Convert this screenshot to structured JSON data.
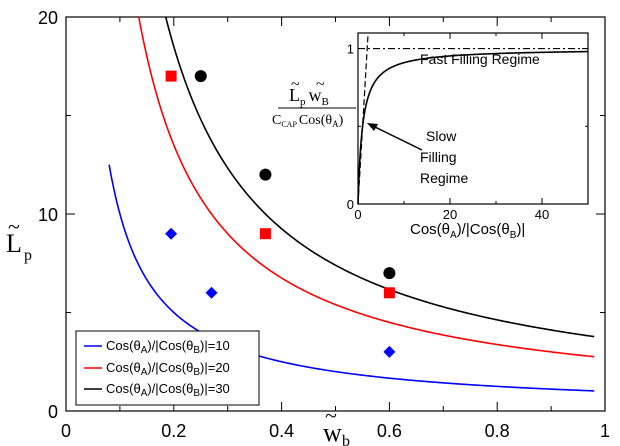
{
  "chart_data": [
    {
      "type": "line",
      "xlabel": "w̃_b",
      "ylabel": "L̃_p",
      "xlim": [
        0,
        1
      ],
      "ylim": [
        0,
        20
      ],
      "x_ticks": [
        0,
        0.2,
        0.4,
        0.6,
        0.8,
        1
      ],
      "x_tick_labels": [
        "0",
        "0.2",
        "0.4",
        "0.6",
        "0.8",
        "1"
      ],
      "y_ticks": [
        0,
        10,
        20
      ],
      "y_tick_labels": [
        "0",
        "10",
        "20"
      ],
      "grid": false,
      "legend_position": "bottom-left",
      "series": [
        {
          "name": "Cos(θA)/|Cos(θB)|=10",
          "color": "#0000ff",
          "line_coefficient": 1.0,
          "line_x_range": [
            0.08,
            0.98
          ],
          "markers": {
            "shape": "diamond",
            "x": [
              0.195,
              0.27,
              0.6
            ],
            "y": [
              9,
              6,
              3
            ]
          }
        },
        {
          "name": "Cos(θA)/|Cos(θB)|=20",
          "color": "#ff0000",
          "line_coefficient": 2.7,
          "line_x_range": [
            0.135,
            0.98
          ],
          "markers": {
            "shape": "square",
            "x": [
              0.195,
              0.37,
              0.6
            ],
            "y": [
              17,
              9,
              6
            ]
          }
        },
        {
          "name": "Cos(θA)/|Cos(θB)|=30",
          "color": "#000000",
          "line_coefficient": 3.7,
          "line_x_range": [
            0.185,
            0.98
          ],
          "markers": {
            "shape": "circle",
            "x": [
              0.25,
              0.37,
              0.6
            ],
            "y": [
              17,
              12,
              7
            ]
          }
        }
      ]
    },
    {
      "type": "line",
      "xlabel": "Cos(θA)/|Cos(θB)|",
      "ylabel": "L̃p w̃B / (C_CAP Cos(θA))",
      "xlim": [
        0,
        50
      ],
      "ylim": [
        0,
        1.1
      ],
      "x_ticks": [
        0,
        20,
        40
      ],
      "x_tick_labels": [
        "0",
        "20",
        "40"
      ],
      "y_ticks": [
        0,
        1
      ],
      "y_tick_labels": [
        "0",
        "1"
      ],
      "curve": {
        "form": "x/(1+x)",
        "color": "#000000",
        "style": "solid"
      },
      "limit_line": {
        "y": 1,
        "style": "dash-dot"
      },
      "steep_line": {
        "style": "dashed",
        "x": [
          0,
          2.2
        ],
        "y": [
          0,
          1.1
        ]
      },
      "annotations": [
        "Fast Filling Regime",
        "Slow",
        "Filling",
        "Regime"
      ]
    }
  ],
  "main_labels": {
    "x_label_symbol": "w",
    "x_label_sub": "b",
    "y_label_symbol": "L",
    "y_label_sub": "p",
    "tilde": "~"
  },
  "legend": [
    {
      "pre": "Cos(θ",
      "sub1": "A",
      "mid": ")/|Cos(θ",
      "sub2": "B",
      "post": ")|=10",
      "color": "#0000ff"
    },
    {
      "pre": "Cos(θ",
      "sub1": "A",
      "mid": ")/|Cos(θ",
      "sub2": "B",
      "post": ")|=20",
      "color": "#ff0000"
    },
    {
      "pre": "Cos(θ",
      "sub1": "A",
      "mid": ")/|Cos(θ",
      "sub2": "B",
      "post": ")|=30",
      "color": "#000000"
    }
  ],
  "inset": {
    "fast_label": "Fast Filling Regime",
    "slow_label_lines": [
      "Slow",
      "Filling",
      "Regime"
    ],
    "ylabel_num_L": "L",
    "ylabel_num_Lsub": "p",
    "ylabel_num_w": "w",
    "ylabel_num_wsub": "B",
    "ylabel_den_C": "C",
    "ylabel_den_Csub": "CAP",
    "ylabel_den_cos": "Cos(θ",
    "ylabel_den_sub": "A",
    "ylabel_den_close": ")",
    "xlabel_pre": "Cos(θ",
    "xlabel_sub1": "A",
    "xlabel_mid": ")/|Cos(θ",
    "xlabel_sub2": "B",
    "xlabel_post": ")|"
  }
}
